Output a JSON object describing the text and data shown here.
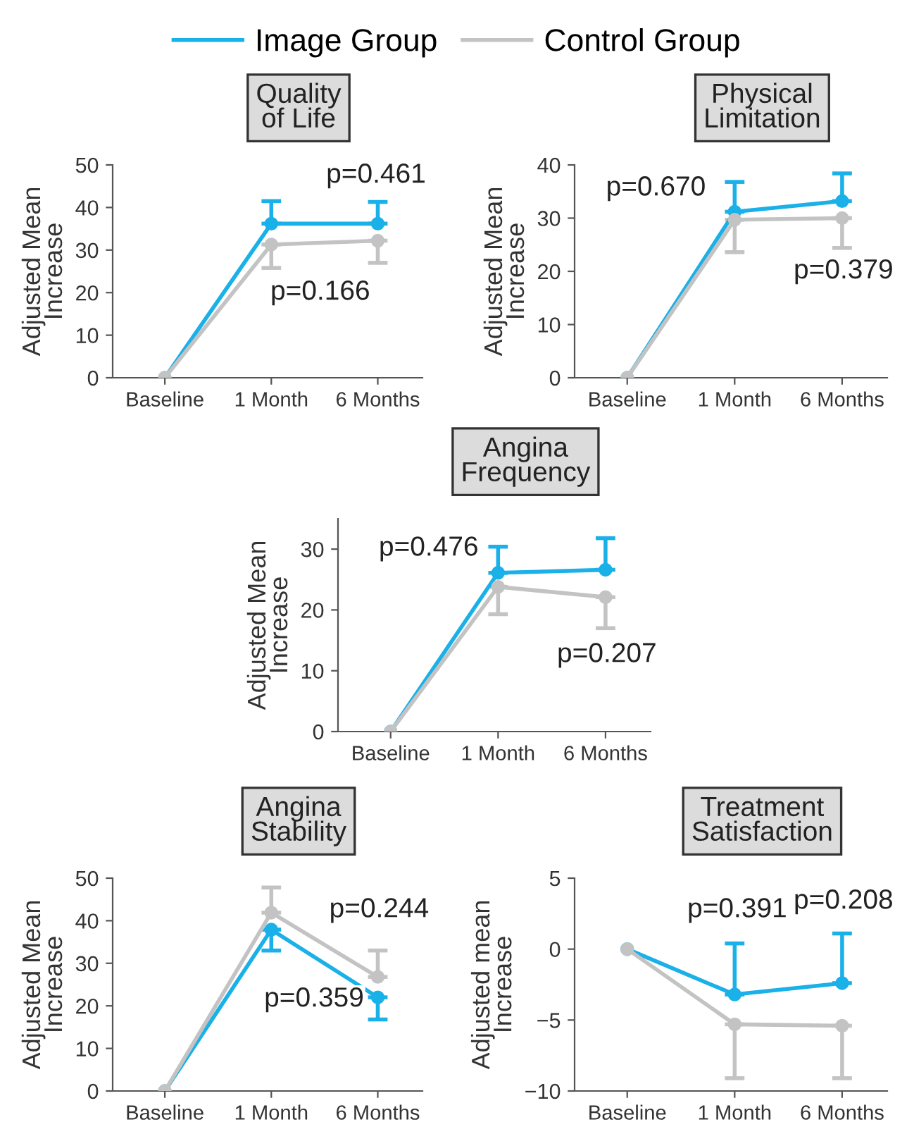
{
  "chart_data": [
    {
      "type": "line",
      "title": "Quality\nof Life",
      "ylabel": "Adjusted Mean\nIncrease",
      "categories": [
        "Baseline",
        "1 Month",
        "6 Months"
      ],
      "ylim": [
        0,
        50
      ],
      "yticks": [
        0,
        10,
        20,
        30,
        40,
        50
      ],
      "marker": "circle",
      "grid": false,
      "legend": "top",
      "series": [
        {
          "name": "Image Group",
          "color": "#1ab0e8",
          "values": [
            0,
            36.2,
            36.2
          ],
          "errors": [
            null,
            [
              36.2,
              41.5
            ],
            [
              36.2,
              41.3
            ]
          ]
        },
        {
          "name": "Control Group",
          "color": "#c3c3c3",
          "values": [
            0,
            31.3,
            32.2
          ],
          "errors": [
            null,
            [
              25.8,
              31.3
            ],
            [
              27.0,
              32.2
            ]
          ]
        }
      ],
      "annotations": [
        "p=0.461",
        "p=0.166"
      ]
    },
    {
      "type": "line",
      "title": "Physical\nLimitation",
      "ylabel": "Adjusted Mean\nIncrease",
      "categories": [
        "Baseline",
        "1 Month",
        "6 Months"
      ],
      "ylim": [
        0,
        40
      ],
      "yticks": [
        0,
        10,
        20,
        30,
        40
      ],
      "marker": "circle",
      "grid": false,
      "series": [
        {
          "color": "#1ab0e8",
          "values": [
            0,
            31.2,
            33.2
          ],
          "errors": [
            null,
            [
              31.2,
              36.8
            ],
            [
              33.2,
              38.4
            ]
          ]
        },
        {
          "color": "#c3c3c3",
          "values": [
            0,
            29.7,
            30.0
          ],
          "errors": [
            null,
            [
              23.6,
              29.7
            ],
            [
              24.4,
              30.0
            ]
          ]
        }
      ],
      "annotations": [
        "p=0.670",
        "p=0.379"
      ]
    },
    {
      "type": "line",
      "title": "Angina\nFrequency",
      "ylabel": "Adjusted Mean\nIncrease",
      "categories": [
        "Baseline",
        "1 Month",
        "6 Months"
      ],
      "ylim": [
        0,
        35
      ],
      "yticks": [
        0,
        10,
        20,
        30
      ],
      "marker": "circle",
      "grid": false,
      "series": [
        {
          "color": "#1ab0e8",
          "values": [
            0,
            26.1,
            26.6
          ],
          "errors": [
            null,
            [
              26.1,
              30.4
            ],
            [
              26.6,
              31.8
            ]
          ]
        },
        {
          "color": "#c3c3c3",
          "values": [
            0,
            23.8,
            22.1
          ],
          "errors": [
            null,
            [
              19.3,
              23.8
            ],
            [
              17.0,
              22.1
            ]
          ]
        }
      ],
      "annotations": [
        "p=0.476",
        "p=0.207"
      ]
    },
    {
      "type": "line",
      "title": "Angina\nStability",
      "ylabel": "Adjusted Mean\nIncrease",
      "categories": [
        "Baseline",
        "1 Month",
        "6 Months"
      ],
      "ylim": [
        0,
        50
      ],
      "yticks": [
        0,
        10,
        20,
        30,
        40,
        50
      ],
      "marker": "circle",
      "grid": false,
      "series": [
        {
          "color": "#1ab0e8",
          "values": [
            0,
            37.9,
            22.0
          ],
          "errors": [
            null,
            [
              33.0,
              37.9
            ],
            [
              16.8,
              22.0
            ]
          ]
        },
        {
          "color": "#c3c3c3",
          "values": [
            0,
            41.9,
            26.8
          ],
          "errors": [
            null,
            [
              41.9,
              47.8
            ],
            [
              26.8,
              33.0
            ]
          ]
        }
      ],
      "annotations": [
        "p=0.244",
        "p=0.359"
      ]
    },
    {
      "type": "line",
      "title": "Treatment\nSatisfaction",
      "ylabel": "Adjusted mean\nIncrease",
      "categories": [
        "Baseline",
        "1 Month",
        "6 Months"
      ],
      "ylim": [
        -10,
        5
      ],
      "yticks": [
        {
          "value": -10,
          "label": "−10"
        },
        {
          "value": -5,
          "label": "−5"
        },
        0,
        5
      ],
      "marker": "circle",
      "grid": false,
      "series": [
        {
          "color": "#1ab0e8",
          "values": [
            0,
            -3.2,
            -2.4
          ],
          "errors": [
            null,
            [
              -3.2,
              0.4
            ],
            [
              -2.4,
              1.1
            ]
          ]
        },
        {
          "color": "#c3c3c3",
          "values": [
            0,
            -5.3,
            -5.4
          ],
          "errors": [
            null,
            [
              -9.1,
              -5.3
            ],
            [
              -9.1,
              -5.4
            ]
          ]
        }
      ],
      "annotations": [
        "p=0.391",
        "p=0.208"
      ]
    }
  ]
}
